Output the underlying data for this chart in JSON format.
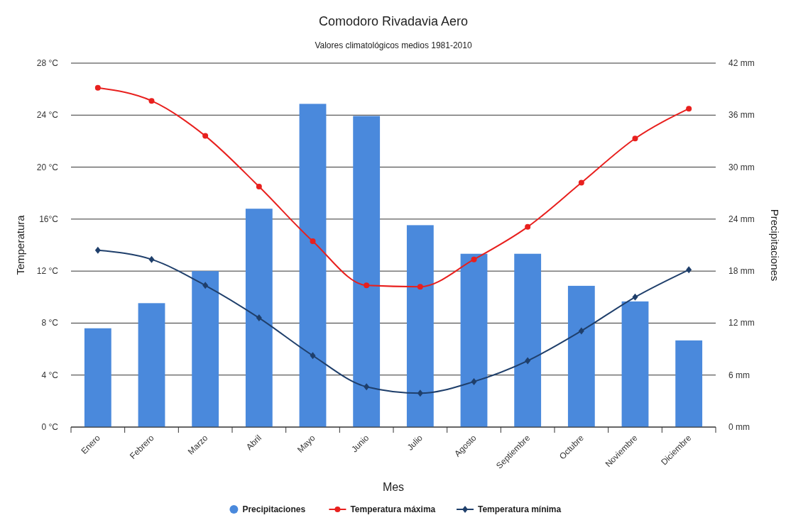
{
  "chart_data": {
    "type": "bar",
    "title": "Comodoro Rivadavia Aero",
    "subtitle": "Valores climatológicos medios 1981-2010",
    "xlabel": "Mes",
    "ylabel": "Temperatura",
    "y2label": "Precipitaciones",
    "categories": [
      "Enero",
      "Febrero",
      "Marzo",
      "Abril",
      "Mayo",
      "Junio",
      "Julio",
      "Agosto",
      "Septiembre",
      "Octubre",
      "Noviembre",
      "Diciembre"
    ],
    "series": [
      {
        "name": "Precipitaciones",
        "axis": "y2",
        "color": "#4a89dc",
        "values": [
          11.4,
          14.3,
          18.0,
          25.2,
          37.3,
          35.9,
          23.3,
          20.0,
          20.0,
          16.3,
          14.5,
          10.0
        ]
      },
      {
        "name": "Temperatura máxima",
        "type": "line",
        "marker": "circle",
        "color": "#e8201e",
        "values": [
          26.1,
          25.1,
          22.4,
          18.5,
          14.3,
          10.9,
          10.8,
          12.9,
          15.4,
          18.8,
          22.2,
          24.5
        ]
      },
      {
        "name": "Temperatura mínima",
        "type": "line",
        "marker": "diamond",
        "color": "#1f3f6b",
        "values": [
          13.6,
          12.9,
          10.9,
          8.4,
          5.5,
          3.1,
          2.6,
          3.5,
          5.1,
          7.4,
          10.0,
          12.1
        ]
      }
    ],
    "ylim": [
      0,
      28
    ],
    "yticks": [
      {
        "value": 0,
        "label": "0 °C"
      },
      {
        "value": 4,
        "label": "4 °C"
      },
      {
        "value": 8,
        "label": "8 °C"
      },
      {
        "value": 12,
        "label": "12 °C"
      },
      {
        "value": 16,
        "label": "16°C"
      },
      {
        "value": 20,
        "label": "20 °C"
      },
      {
        "value": 24,
        "label": "24 °C"
      },
      {
        "value": 28,
        "label": "28 °C"
      }
    ],
    "y2lim": [
      0,
      42
    ],
    "y2ticks": [
      {
        "value": 0,
        "label": "0 mm"
      },
      {
        "value": 6,
        "label": "6 mm"
      },
      {
        "value": 12,
        "label": "12 mm"
      },
      {
        "value": 18,
        "label": "18 mm"
      },
      {
        "value": 24,
        "label": "24 mm"
      },
      {
        "value": 30,
        "label": "30 mm"
      },
      {
        "value": 36,
        "label": "36 mm"
      },
      {
        "value": 42,
        "label": "42 mm"
      }
    ],
    "grid": "y",
    "legend": "bottom"
  }
}
